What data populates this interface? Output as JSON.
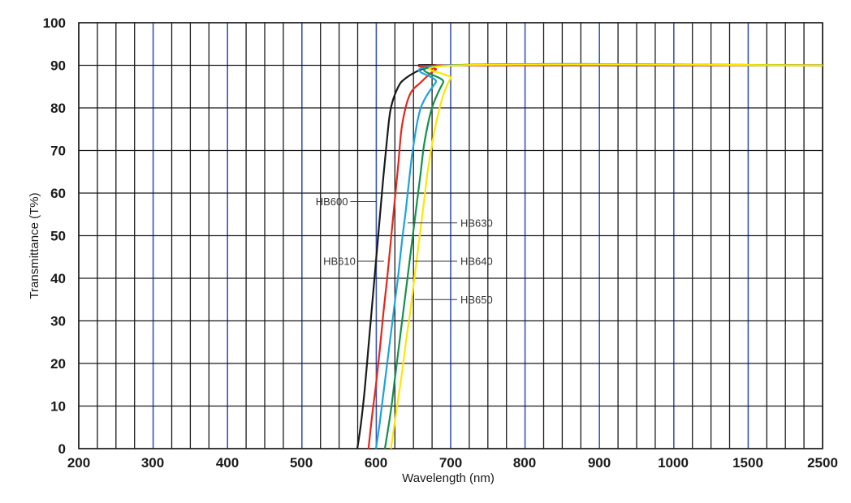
{
  "chart_data": {
    "type": "line",
    "title": "",
    "xlabel": "Wavelength (nm)",
    "ylabel": "Transmittance (T%)",
    "ylim": [
      0,
      100
    ],
    "x_tick_labels": [
      "200",
      "300",
      "400",
      "500",
      "600",
      "700",
      "800",
      "900",
      "1000",
      "1500",
      "2500"
    ],
    "y_tick_labels": [
      "0",
      "10",
      "20",
      "30",
      "40",
      "50",
      "60",
      "70",
      "80",
      "90",
      "100"
    ],
    "grid": true,
    "series": [
      {
        "name": "HB600",
        "color": "#1a1a1a",
        "x": [
          575,
          580,
          585,
          590,
          595,
          600,
          605,
          610,
          615,
          620,
          630,
          640,
          660,
          680,
          700,
          2500
        ],
        "y": [
          0,
          6,
          14,
          24,
          34,
          44,
          54,
          64,
          73,
          80,
          85,
          87,
          89,
          90,
          90,
          90
        ]
      },
      {
        "name": "HB610",
        "color": "#e8251b",
        "x": [
          590,
          595,
          600,
          605,
          610,
          615,
          620,
          625,
          630,
          635,
          645,
          660,
          680,
          700,
          2500
        ],
        "y": [
          0,
          8,
          15,
          23,
          32,
          40,
          49,
          58,
          67,
          76,
          83,
          86,
          89,
          90,
          90
        ]
      },
      {
        "name": "HB630",
        "color": "#1ba3df",
        "x": [
          600,
          605,
          610,
          615,
          620,
          625,
          630,
          635,
          640,
          645,
          650,
          660,
          680,
          700,
          2500
        ],
        "y": [
          0,
          6,
          13,
          20,
          27,
          34,
          41,
          49,
          56,
          64,
          71,
          80,
          86,
          90,
          90
        ]
      },
      {
        "name": "HB640",
        "color": "#14914a",
        "x": [
          612,
          620,
          625,
          630,
          635,
          640,
          645,
          650,
          655,
          660,
          665,
          675,
          690,
          705,
          2500
        ],
        "y": [
          0,
          9,
          16,
          23,
          30,
          37,
          44,
          51,
          58,
          65,
          72,
          80,
          86,
          90,
          90
        ]
      },
      {
        "name": "HB650",
        "color": "#ffe600",
        "x": [
          620,
          625,
          630,
          635,
          640,
          645,
          650,
          655,
          660,
          665,
          670,
          680,
          690,
          700,
          710,
          2500
        ],
        "y": [
          0,
          6,
          12,
          18,
          25,
          31,
          38,
          45,
          52,
          59,
          66,
          76,
          83,
          87,
          90,
          90
        ]
      }
    ],
    "annotations": [
      {
        "text": "HB600",
        "series": "HB600",
        "y": 58,
        "side": "left"
      },
      {
        "text": "HB610",
        "series": "HB610",
        "y": 44,
        "side": "left"
      },
      {
        "text": "HB630",
        "series": "HB630",
        "y": 53,
        "side": "right"
      },
      {
        "text": "HB640",
        "series": "HB640",
        "y": 44,
        "side": "right"
      },
      {
        "text": "HB650",
        "series": "HB650",
        "y": 35,
        "side": "right"
      }
    ]
  }
}
